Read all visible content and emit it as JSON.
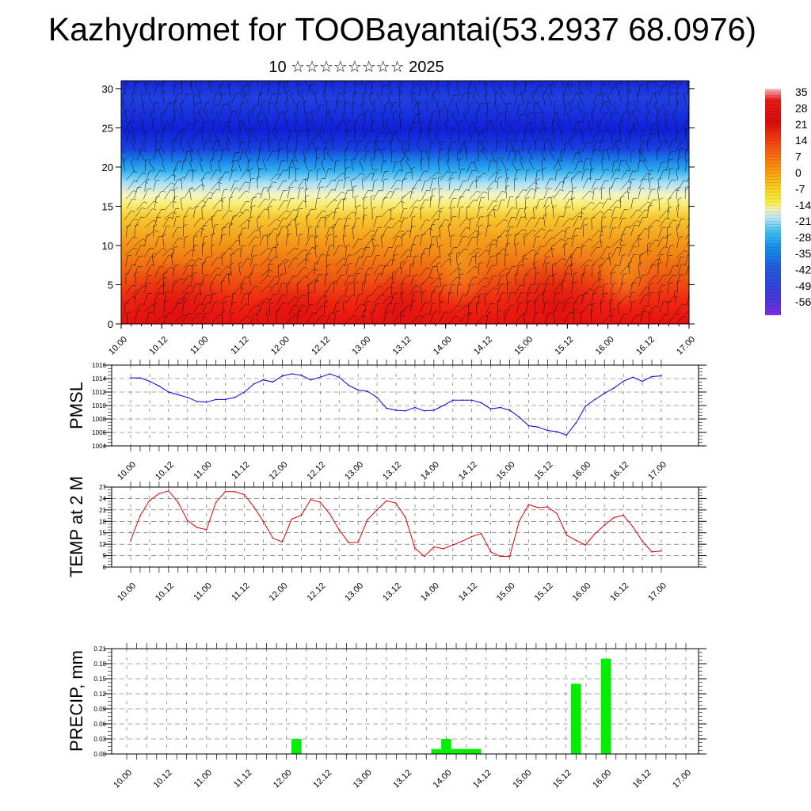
{
  "title": "Kazhydromet for TOOBayantai(53.2937 68.0976)",
  "subtitle": "10 ☆☆☆☆☆☆☆☆ 2025",
  "colors": {
    "pmsl_line": "#0000dd",
    "temp_line": "#dd0000",
    "precip_bar": "#00ee00",
    "grid": "#555555"
  },
  "chart_data": [
    {
      "type": "heatmap",
      "name": "",
      "xticks": [
        "10.00",
        "10.12",
        "11.00",
        "11.12",
        "12.00",
        "12.12",
        "13.00",
        "13.12",
        "14.00",
        "14.12",
        "15.00",
        "15.12",
        "16.00",
        "16.12",
        "17.00"
      ],
      "yticks": [
        0,
        5,
        10,
        15,
        20,
        25,
        30
      ],
      "ylim": [
        0,
        31
      ],
      "colorbar": {
        "labels": [
          "35",
          "28",
          "21",
          "14",
          "7",
          "0",
          "-7",
          "-14",
          "-21",
          "-28",
          "-35",
          "-42",
          "-49",
          "-56"
        ],
        "palette": [
          "#f2b2b2",
          "#e01010",
          "#f03010",
          "#f86010",
          "#f88c10",
          "#f8b820",
          "#f8e040",
          "#f8f0a0",
          "#b8e8f8",
          "#30b8f0",
          "#2080e8",
          "#2858e0",
          "#3040d8",
          "#7030e0"
        ]
      },
      "overlay": "wind barbs"
    },
    {
      "type": "line",
      "name": "PMSL",
      "ylabel": "PMSL",
      "ylim": [
        1004,
        1016
      ],
      "yticks": [
        1004,
        1006,
        1008,
        1010,
        1012,
        1014,
        1016
      ],
      "xticks": [
        "10.00",
        "10.12",
        "11.00",
        "11.12",
        "12.00",
        "12.12",
        "13.00",
        "13.12",
        "14.00",
        "14.12",
        "15.00",
        "15.12",
        "16.00",
        "16.12",
        "17.00"
      ],
      "x_hours": [
        0,
        3,
        6,
        9,
        12,
        15,
        18,
        21,
        24,
        27,
        30,
        33,
        36,
        39,
        42,
        45,
        48,
        51,
        54,
        57,
        60,
        63,
        66,
        69,
        72,
        75,
        78,
        81,
        84,
        87,
        90,
        93,
        96,
        99,
        102,
        105,
        108,
        111,
        114,
        117,
        120,
        123,
        126,
        129,
        132,
        135,
        138,
        141,
        144,
        147,
        150,
        153,
        156,
        159,
        162,
        165,
        168
      ],
      "values": [
        1014.1,
        1014.1,
        1013.6,
        1012.9,
        1012.0,
        1011.6,
        1011.2,
        1010.6,
        1010.5,
        1010.9,
        1010.9,
        1011.2,
        1012.0,
        1013.2,
        1013.8,
        1013.5,
        1014.4,
        1014.7,
        1014.5,
        1013.8,
        1014.2,
        1014.7,
        1014.2,
        1013.0,
        1012.3,
        1012.1,
        1011.2,
        1009.6,
        1009.3,
        1009.2,
        1009.7,
        1009.2,
        1009.3,
        1010.0,
        1010.8,
        1010.8,
        1010.8,
        1010.4,
        1009.5,
        1009.7,
        1009.3,
        1008.3,
        1007.0,
        1006.8,
        1006.3,
        1006.1,
        1005.6,
        1007.4,
        1009.9,
        1010.9,
        1011.8,
        1012.6,
        1013.6,
        1014.2,
        1013.6,
        1014.3,
        1014.4
      ]
    },
    {
      "type": "line",
      "name": "TEMP at 2 M",
      "ylabel": "TEMP at 2 M",
      "ylim": [
        6,
        27
      ],
      "yticks": [
        6,
        9,
        12,
        15,
        18,
        21,
        24,
        27
      ],
      "xticks": [
        "10.00",
        "10.12",
        "11.00",
        "11.12",
        "12.00",
        "12.12",
        "13.00",
        "13.12",
        "14.00",
        "14.12",
        "15.00",
        "15.12",
        "16.00",
        "16.12",
        "17.00"
      ],
      "x_hours": [
        0,
        3,
        6,
        9,
        12,
        15,
        18,
        21,
        24,
        27,
        30,
        33,
        36,
        39,
        42,
        45,
        48,
        51,
        54,
        57,
        60,
        63,
        66,
        69,
        72,
        75,
        78,
        81,
        84,
        87,
        90,
        93,
        96,
        99,
        102,
        105,
        108,
        111,
        114,
        117,
        120,
        123,
        126,
        129,
        132,
        135,
        138,
        141,
        144,
        147,
        150,
        153,
        156,
        159,
        162,
        165,
        168
      ],
      "values": [
        13.0,
        19.5,
        23.5,
        25.3,
        26.0,
        23.0,
        18.2,
        16.4,
        15.8,
        23.0,
        25.8,
        25.8,
        25.0,
        21.8,
        18.0,
        13.6,
        12.6,
        18.6,
        19.6,
        23.7,
        23.0,
        20.0,
        15.8,
        12.4,
        12.5,
        18.5,
        21.0,
        23.4,
        22.8,
        19.0,
        11.0,
        8.8,
        11.3,
        10.8,
        11.8,
        12.8,
        14.0,
        14.8,
        10.0,
        8.8,
        8.8,
        18.0,
        22.4,
        21.6,
        21.8,
        20.0,
        14.4,
        13.0,
        11.8,
        14.8,
        17.0,
        19.0,
        19.6,
        16.6,
        12.8,
        10.0,
        10.2
      ]
    },
    {
      "type": "bar",
      "name": "PRECIP, mm",
      "ylabel": "PRECIP, mm",
      "ylim": [
        0,
        0.21
      ],
      "yticks": [
        "0.00",
        "0.03",
        "0.06",
        "0.09",
        "0.12",
        "0.15",
        "0.18",
        "0.21"
      ],
      "xticks": [
        "10.00",
        "10.12",
        "11.00",
        "11.12",
        "12.00",
        "12.12",
        "13.00",
        "13.12",
        "14.00",
        "14.12",
        "15.00",
        "15.12",
        "16.00",
        "16.12",
        "17.00"
      ],
      "x_hours": [
        51,
        93,
        96,
        99,
        102,
        105,
        135,
        144
      ],
      "values": [
        0.03,
        0.01,
        0.03,
        0.01,
        0.01,
        0.01,
        0.14,
        0.19
      ]
    }
  ]
}
